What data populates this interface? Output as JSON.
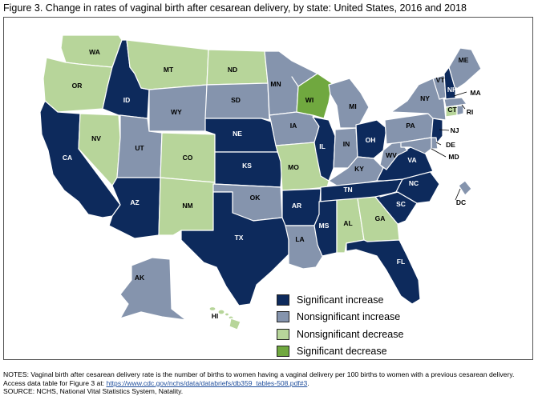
{
  "figure": {
    "title": "Figure 3. Change in rates of vaginal birth after cesarean delivery, by state: United States, 2016 and 2018"
  },
  "colors": {
    "significant_increase": "#0d2a5c",
    "nonsignificant_increase": "#8594ad",
    "nonsignificant_decrease": "#b7d59a",
    "significant_decrease": "#70a83f",
    "border": "#ffffff",
    "label_light": "#ffffff",
    "label_dark": "#000000"
  },
  "legend": [
    {
      "key": "significant_increase",
      "label": "Significant increase"
    },
    {
      "key": "nonsignificant_increase",
      "label": "Nonsignificant increase"
    },
    {
      "key": "nonsignificant_decrease",
      "label": "Nonsignificant decrease"
    },
    {
      "key": "significant_decrease",
      "label": "Significant decrease"
    }
  ],
  "states": {
    "WA": {
      "label": "WA",
      "category": "nonsignificant_decrease"
    },
    "OR": {
      "label": "OR",
      "category": "nonsignificant_decrease"
    },
    "CA": {
      "label": "CA",
      "category": "significant_increase"
    },
    "NV": {
      "label": "NV",
      "category": "nonsignificant_decrease"
    },
    "ID": {
      "label": "ID",
      "category": "significant_increase"
    },
    "MT": {
      "label": "MT",
      "category": "nonsignificant_decrease"
    },
    "WY": {
      "label": "WY",
      "category": "nonsignificant_increase"
    },
    "UT": {
      "label": "UT",
      "category": "nonsignificant_increase"
    },
    "AZ": {
      "label": "AZ",
      "category": "significant_increase"
    },
    "CO": {
      "label": "CO",
      "category": "nonsignificant_decrease"
    },
    "NM": {
      "label": "NM",
      "category": "nonsignificant_decrease"
    },
    "ND": {
      "label": "ND",
      "category": "nonsignificant_decrease"
    },
    "SD": {
      "label": "SD",
      "category": "nonsignificant_increase"
    },
    "NE": {
      "label": "NE",
      "category": "significant_increase"
    },
    "KS": {
      "label": "KS",
      "category": "significant_increase"
    },
    "OK": {
      "label": "OK",
      "category": "nonsignificant_increase"
    },
    "TX": {
      "label": "TX",
      "category": "significant_increase"
    },
    "MN": {
      "label": "MN",
      "category": "nonsignificant_increase"
    },
    "IA": {
      "label": "IA",
      "category": "nonsignificant_increase"
    },
    "MO": {
      "label": "MO",
      "category": "nonsignificant_decrease"
    },
    "AR": {
      "label": "AR",
      "category": "significant_increase"
    },
    "LA": {
      "label": "LA",
      "category": "nonsignificant_increase"
    },
    "WI": {
      "label": "WI",
      "category": "significant_decrease"
    },
    "IL": {
      "label": "IL",
      "category": "significant_increase"
    },
    "MI": {
      "label": "MI",
      "category": "nonsignificant_increase"
    },
    "IN": {
      "label": "IN",
      "category": "nonsignificant_increase"
    },
    "OH": {
      "label": "OH",
      "category": "significant_increase"
    },
    "KY": {
      "label": "KY",
      "category": "nonsignificant_increase"
    },
    "TN": {
      "label": "TN",
      "category": "significant_increase"
    },
    "MS": {
      "label": "MS",
      "category": "significant_increase"
    },
    "AL": {
      "label": "AL",
      "category": "nonsignificant_decrease"
    },
    "GA": {
      "label": "GA",
      "category": "nonsignificant_decrease"
    },
    "FL": {
      "label": "FL",
      "category": "significant_increase"
    },
    "SC": {
      "label": "SC",
      "category": "significant_increase"
    },
    "NC": {
      "label": "NC",
      "category": "significant_increase"
    },
    "VA": {
      "label": "VA",
      "category": "significant_increase"
    },
    "WV": {
      "label": "WV",
      "category": "nonsignificant_increase"
    },
    "PA": {
      "label": "PA",
      "category": "nonsignificant_increase"
    },
    "NY": {
      "label": "NY",
      "category": "nonsignificant_increase"
    },
    "NJ": {
      "label": "NJ",
      "category": "significant_increase"
    },
    "DE": {
      "label": "DE",
      "category": "nonsignificant_increase"
    },
    "MD": {
      "label": "MD",
      "category": "nonsignificant_increase"
    },
    "DC": {
      "label": "DC",
      "category": "nonsignificant_increase"
    },
    "VT": {
      "label": "VT",
      "category": "nonsignificant_increase"
    },
    "NH": {
      "label": "NH",
      "category": "significant_increase"
    },
    "ME": {
      "label": "ME",
      "category": "nonsignificant_increase"
    },
    "MA": {
      "label": "MA",
      "category": "nonsignificant_increase"
    },
    "CT": {
      "label": "CT",
      "category": "nonsignificant_decrease"
    },
    "RI": {
      "label": "RI",
      "category": "nonsignificant_increase"
    },
    "AK": {
      "label": "AK",
      "category": "nonsignificant_increase"
    },
    "HI": {
      "label": "HI",
      "category": "nonsignificant_decrease"
    }
  },
  "notes": {
    "line1": "NOTES: Vaginal birth after cesarean delivery rate is the number of births to women having a vaginal delivery per 100 births to women with a previous cesarean delivery. Access data table for Figure 3 at: ",
    "link": "https://www.cdc.gov/nchs/data/databriefs/db359_tables-508.pdf#3",
    "after_link": ".",
    "source": "SOURCE: NCHS, National Vital Statistics System, Natality."
  }
}
